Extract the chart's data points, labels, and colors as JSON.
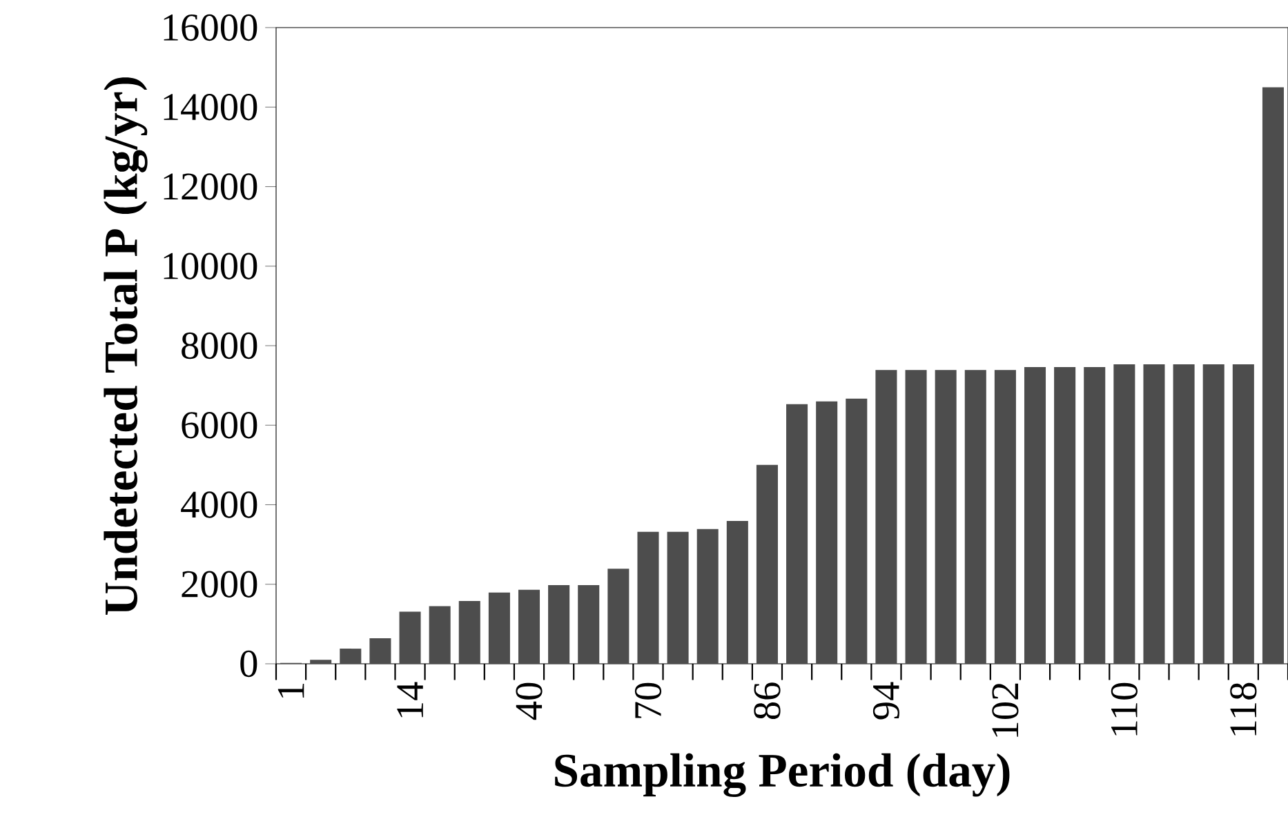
{
  "chart_data": {
    "type": "bar",
    "xlabel": "Sampling Period (day)",
    "ylabel": "Undetected Total P (kg/yr)",
    "categories": [
      "1",
      null,
      null,
      null,
      "14",
      null,
      null,
      null,
      "40",
      null,
      null,
      null,
      "70",
      null,
      null,
      null,
      "86",
      null,
      null,
      null,
      "94",
      null,
      null,
      null,
      "102",
      null,
      null,
      null,
      "110",
      null,
      null,
      null,
      "118",
      null
    ],
    "values": [
      20,
      100,
      380,
      640,
      1310,
      1450,
      1580,
      1790,
      1860,
      1980,
      1980,
      2390,
      3320,
      3320,
      3390,
      3590,
      5000,
      6530,
      6600,
      6670,
      7390,
      7390,
      7390,
      7390,
      7390,
      7460,
      7460,
      7460,
      7530,
      7530,
      7530,
      7530,
      7530,
      14500
    ],
    "color": "#4d4d4d",
    "ylim": [
      0,
      16000
    ],
    "yticks": [
      0,
      2000,
      4000,
      6000,
      8000,
      10000,
      12000,
      14000,
      16000
    ],
    "grid": false
  }
}
